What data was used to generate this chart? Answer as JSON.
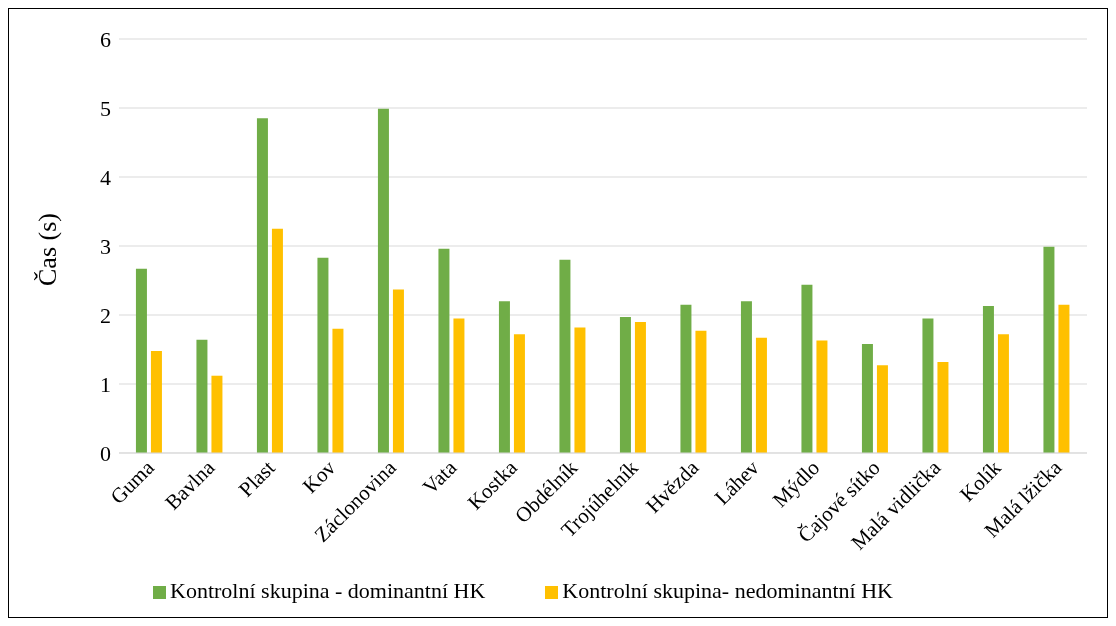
{
  "chart_data": {
    "type": "bar",
    "ylabel": "Čas (s)",
    "categories": [
      "Guma",
      "Bavlna",
      "Plast",
      "Kov",
      "Záclonovina",
      "Vata",
      "Kostka",
      "Obdélník",
      "Trojúhelník",
      "Hvězda",
      "Láhev",
      "Mýdlo",
      "Čajové sítko",
      "Malá vidlička",
      "Kolík",
      "Malá lžička"
    ],
    "series": [
      {
        "name": "Kontrolní skupina - dominantní HK",
        "color": "#70ad47",
        "values": [
          2.67,
          1.64,
          4.85,
          2.83,
          4.99,
          2.96,
          2.2,
          2.8,
          1.97,
          2.15,
          2.2,
          2.44,
          1.58,
          1.95,
          2.13,
          2.99
        ]
      },
      {
        "name": "Kontrolní skupina- nedominantní HK",
        "color": "#ffc000",
        "values": [
          1.48,
          1.12,
          3.25,
          1.8,
          2.37,
          1.95,
          1.72,
          1.82,
          1.9,
          1.77,
          1.67,
          1.63,
          1.27,
          1.32,
          1.72,
          2.15
        ]
      }
    ],
    "ylim": [
      0,
      6
    ],
    "yticks": [
      0,
      1,
      2,
      3,
      4,
      5,
      6
    ],
    "grid": "y",
    "legend": "bottom"
  }
}
